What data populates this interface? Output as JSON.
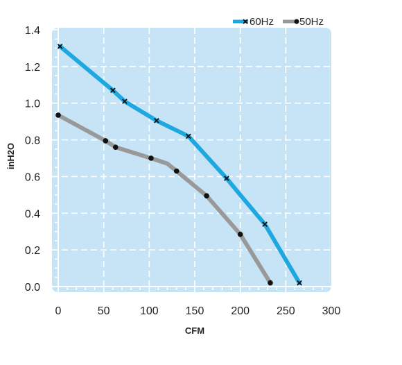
{
  "chart_data": {
    "type": "line",
    "xlabel": "CFM",
    "ylabel": "inH2O",
    "xlim": [
      0,
      300
    ],
    "ylim": [
      0,
      1.4
    ],
    "x_ticks": [
      "0",
      "50",
      "100",
      "150",
      "200",
      "250",
      "300"
    ],
    "y_ticks": [
      "0.0",
      "0.2",
      "0.4",
      "0.6",
      "0.8",
      "1.0",
      "1.2",
      "1.4"
    ],
    "grid": true,
    "legend_position": "top-right",
    "background_color": "#c6e4f6",
    "series": [
      {
        "name": "60Hz",
        "color": "#1ea8e0",
        "marker": "x",
        "line": [
          [
            2,
            1.31
          ],
          [
            60,
            1.07
          ],
          [
            73,
            1.01
          ],
          [
            108,
            0.905
          ],
          [
            143,
            0.82
          ],
          [
            185,
            0.59
          ],
          [
            200,
            0.5
          ],
          [
            227,
            0.34
          ],
          [
            265,
            0.02
          ]
        ],
        "markers": [
          [
            2,
            1.31
          ],
          [
            60,
            1.07
          ],
          [
            73,
            1.01
          ],
          [
            108,
            0.905
          ],
          [
            143,
            0.82
          ],
          [
            185,
            0.59
          ],
          [
            227,
            0.34
          ],
          [
            265,
            0.02
          ]
        ]
      },
      {
        "name": "50Hz",
        "color": "#999999",
        "marker": "dot",
        "line": [
          [
            0,
            0.935
          ],
          [
            52,
            0.795
          ],
          [
            63,
            0.76
          ],
          [
            102,
            0.7
          ],
          [
            120,
            0.67
          ],
          [
            130,
            0.63
          ],
          [
            163,
            0.495
          ],
          [
            200,
            0.285
          ],
          [
            233,
            0.02
          ]
        ],
        "markers": [
          [
            0,
            0.935
          ],
          [
            52,
            0.795
          ],
          [
            63,
            0.76
          ],
          [
            102,
            0.7
          ],
          [
            130,
            0.63
          ],
          [
            163,
            0.495
          ],
          [
            200,
            0.285
          ],
          [
            233,
            0.02
          ]
        ]
      }
    ]
  }
}
